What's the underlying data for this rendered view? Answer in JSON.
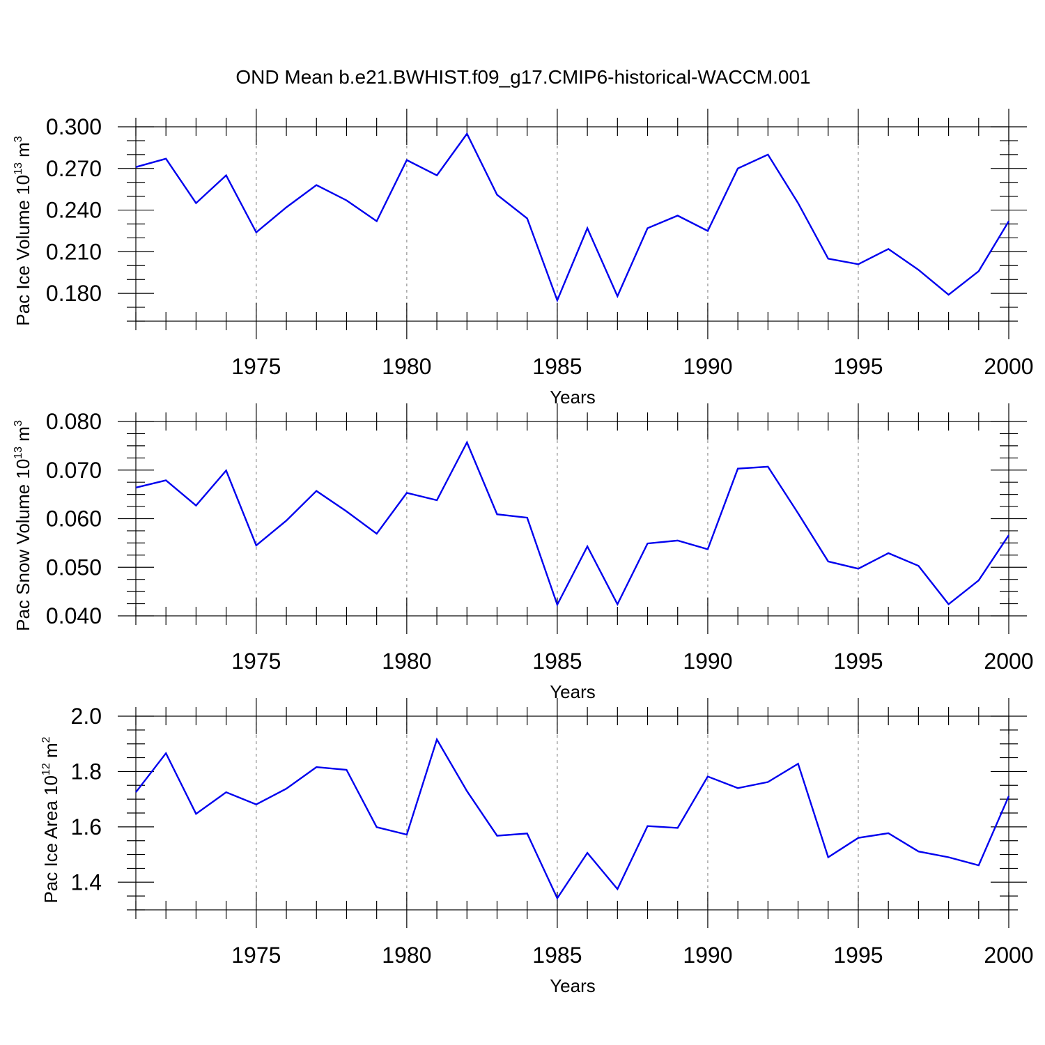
{
  "title": "OND Mean b.e21.BWHIST.f09_g17.CMIP6-historical-WACCM.001",
  "colors": {
    "line": "#0000ee",
    "axis": "#000000",
    "grid": "#999999"
  },
  "chart_data": [
    {
      "type": "line",
      "name": "ice-volume",
      "ylabel_parts": [
        "Pac Ice Volume 10",
        "13",
        " m",
        "3"
      ],
      "xlabel": "Years",
      "xlim": [
        1971,
        2000
      ],
      "ylim": [
        0.16,
        0.3
      ],
      "yticks": [
        0.18,
        0.21,
        0.24,
        0.27,
        0.3
      ],
      "ytick_labels": [
        "0.180",
        "0.210",
        "0.240",
        "0.270",
        "0.300"
      ],
      "yminor_step": 0.01,
      "xticks": [
        1975,
        1980,
        1985,
        1990,
        1995,
        2000
      ],
      "xtick_labels": [
        "1975",
        "1980",
        "1985",
        "1990",
        "1995",
        "2000"
      ],
      "x": [
        1971,
        1972,
        1973,
        1974,
        1975,
        1976,
        1977,
        1978,
        1979,
        1980,
        1981,
        1982,
        1983,
        1984,
        1985,
        1986,
        1987,
        1988,
        1989,
        1990,
        1991,
        1992,
        1993,
        1994,
        1995,
        1996,
        1997,
        1998,
        1999,
        2000
      ],
      "values": [
        0.271,
        0.277,
        0.245,
        0.265,
        0.224,
        0.242,
        0.258,
        0.247,
        0.232,
        0.276,
        0.265,
        0.295,
        0.251,
        0.234,
        0.175,
        0.227,
        0.178,
        0.227,
        0.236,
        0.225,
        0.27,
        0.28,
        0.245,
        0.205,
        0.201,
        0.212,
        0.197,
        0.179,
        0.196,
        0.232
      ]
    },
    {
      "type": "line",
      "name": "snow-volume",
      "ylabel_parts": [
        "Pac Snow Volume 10",
        "13",
        " m",
        "3"
      ],
      "xlabel": "Years",
      "xlim": [
        1971,
        2000
      ],
      "ylim": [
        0.04,
        0.08
      ],
      "yticks": [
        0.04,
        0.05,
        0.06,
        0.07,
        0.08
      ],
      "ytick_labels": [
        "0.040",
        "0.050",
        "0.060",
        "0.070",
        "0.080"
      ],
      "yminor_step": 0.0025,
      "xticks": [
        1975,
        1980,
        1985,
        1990,
        1995,
        2000
      ],
      "xtick_labels": [
        "1975",
        "1980",
        "1985",
        "1990",
        "1995",
        "2000"
      ],
      "x": [
        1971,
        1972,
        1973,
        1974,
        1975,
        1976,
        1977,
        1978,
        1979,
        1980,
        1981,
        1982,
        1983,
        1984,
        1985,
        1986,
        1987,
        1988,
        1989,
        1990,
        1991,
        1992,
        1993,
        1994,
        1995,
        1996,
        1997,
        1998,
        1999,
        2000
      ],
      "values": [
        0.0664,
        0.0679,
        0.0627,
        0.0699,
        0.0545,
        0.0596,
        0.0657,
        0.0615,
        0.0569,
        0.0653,
        0.0638,
        0.0757,
        0.0609,
        0.0602,
        0.0423,
        0.0543,
        0.0424,
        0.0549,
        0.0555,
        0.0537,
        0.0703,
        0.0707,
        0.0611,
        0.0512,
        0.0497,
        0.0529,
        0.0503,
        0.0424,
        0.0473,
        0.0566
      ]
    },
    {
      "type": "line",
      "name": "ice-area",
      "ylabel_parts": [
        "Pac Ice Area 10",
        "12",
        " m",
        "2"
      ],
      "xlabel": "Years",
      "xlim": [
        1971,
        2000
      ],
      "ylim": [
        1.3,
        2.0
      ],
      "yticks": [
        1.4,
        1.6,
        1.8,
        2.0
      ],
      "ytick_labels": [
        "1.4",
        "1.6",
        "1.8",
        "2.0"
      ],
      "yminor_step": 0.05,
      "xticks": [
        1975,
        1980,
        1985,
        1990,
        1995,
        2000
      ],
      "xtick_labels": [
        "1975",
        "1980",
        "1985",
        "1990",
        "1995",
        "2000"
      ],
      "x": [
        1971,
        1972,
        1973,
        1974,
        1975,
        1976,
        1977,
        1978,
        1979,
        1980,
        1981,
        1982,
        1983,
        1984,
        1985,
        1986,
        1987,
        1988,
        1989,
        1990,
        1991,
        1992,
        1993,
        1994,
        1995,
        1996,
        1997,
        1998,
        1999,
        2000
      ],
      "values": [
        1.725,
        1.866,
        1.647,
        1.725,
        1.681,
        1.738,
        1.816,
        1.806,
        1.599,
        1.572,
        1.916,
        1.729,
        1.568,
        1.576,
        1.342,
        1.506,
        1.375,
        1.603,
        1.596,
        1.782,
        1.74,
        1.762,
        1.828,
        1.49,
        1.56,
        1.577,
        1.511,
        1.49,
        1.461,
        1.711
      ]
    }
  ]
}
